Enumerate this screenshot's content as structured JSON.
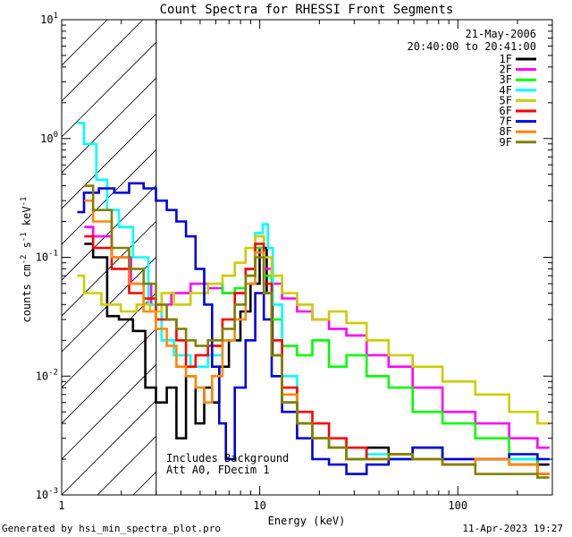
{
  "chart_data": {
    "type": "line",
    "title": "Count Spectra for RHESSI Front Segments",
    "xlabel": "Energy (keV)",
    "ylabel": "counts cm-2 s-1 keV-1",
    "ylabel_parts": [
      "counts cm",
      "-2",
      " s",
      "-1",
      " keV",
      "-1"
    ],
    "xscale": "log",
    "yscale": "log",
    "xlim": [
      1,
      300
    ],
    "ylim": [
      0.001,
      10
    ],
    "x_ticks": [
      {
        "v": 1,
        "label": "1"
      },
      {
        "v": 10,
        "label": "10"
      },
      {
        "v": 100,
        "label": "100"
      }
    ],
    "y_ticks": [
      {
        "v": 0.001,
        "base": "10",
        "exp": "-3"
      },
      {
        "v": 0.01,
        "base": "10",
        "exp": "-2"
      },
      {
        "v": 0.1,
        "base": "10",
        "exp": "-1"
      },
      {
        "v": 1,
        "base": "10",
        "exp": "0"
      },
      {
        "v": 10,
        "base": "10",
        "exp": "1"
      }
    ],
    "date": "21-May-2006",
    "time_range": "20:40:00 to 20:41:00",
    "shaded_below_keV": 3,
    "annotations": [
      "Includes Background",
      "Att A0, FDecim 1"
    ],
    "footer_left": "Generated by hsi_min_spectra_plot.pro",
    "footer_right": "11-Apr-2023 19:27",
    "series": [
      {
        "name": "1F",
        "color": "#000000",
        "points": [
          [
            1.3,
            0.13
          ],
          [
            1.6,
            0.1
          ],
          [
            1.8,
            0.032
          ],
          [
            2.1,
            0.03
          ],
          [
            2.5,
            0.024
          ],
          [
            2.8,
            0.008
          ],
          [
            3.2,
            0.006
          ],
          [
            3.6,
            0.008
          ],
          [
            4.0,
            0.003
          ],
          [
            4.5,
            0.01
          ],
          [
            5.0,
            0.004
          ],
          [
            5.5,
            0.008
          ],
          [
            6.0,
            0.006
          ],
          [
            6.5,
            0.012
          ],
          [
            7.5,
            0.02
          ],
          [
            8.5,
            0.035
          ],
          [
            9.5,
            0.06
          ],
          [
            10.5,
            0.12
          ],
          [
            11.2,
            0.05
          ],
          [
            12,
            0.015
          ],
          [
            14,
            0.006
          ],
          [
            17,
            0.004
          ],
          [
            20,
            0.003
          ],
          [
            25,
            0.0025
          ],
          [
            30,
            0.002
          ],
          [
            40,
            0.0025
          ],
          [
            50,
            0.002
          ],
          [
            70,
            0.0025
          ],
          [
            100,
            0.0018
          ],
          [
            150,
            0.002
          ],
          [
            220,
            0.002
          ],
          [
            290,
            0.0018
          ]
        ]
      },
      {
        "name": "2F",
        "color": "#ff00ff",
        "points": [
          [
            1.3,
            0.18
          ],
          [
            1.6,
            0.15
          ],
          [
            2.0,
            0.1
          ],
          [
            2.5,
            0.06
          ],
          [
            3.2,
            0.04
          ],
          [
            4.0,
            0.05
          ],
          [
            5.0,
            0.06
          ],
          [
            6.0,
            0.055
          ],
          [
            7.0,
            0.05
          ],
          [
            8.0,
            0.05
          ],
          [
            9.0,
            0.08
          ],
          [
            10.0,
            0.12
          ],
          [
            11.0,
            0.08
          ],
          [
            12,
            0.06
          ],
          [
            14,
            0.045
          ],
          [
            17,
            0.035
          ],
          [
            20,
            0.03
          ],
          [
            25,
            0.025
          ],
          [
            30,
            0.022
          ],
          [
            40,
            0.015
          ],
          [
            50,
            0.012
          ],
          [
            70,
            0.008
          ],
          [
            100,
            0.005
          ],
          [
            150,
            0.004
          ],
          [
            220,
            0.003
          ],
          [
            290,
            0.0025
          ]
        ]
      },
      {
        "name": "3F",
        "color": "#00ff00",
        "points": [
          [
            6.0,
            0.06
          ],
          [
            7.0,
            0.05
          ],
          [
            8.0,
            0.055
          ],
          [
            9.0,
            0.07
          ],
          [
            10.0,
            0.12
          ],
          [
            11.0,
            0.07
          ],
          [
            12,
            0.03
          ],
          [
            14,
            0.018
          ],
          [
            17,
            0.015
          ],
          [
            20,
            0.02
          ],
          [
            25,
            0.012
          ],
          [
            30,
            0.015
          ],
          [
            40,
            0.01
          ],
          [
            50,
            0.008
          ],
          [
            70,
            0.005
          ],
          [
            100,
            0.004
          ],
          [
            150,
            0.003
          ],
          [
            220,
            0.002
          ],
          [
            290,
            0.0015
          ]
        ]
      },
      {
        "name": "4F",
        "color": "#00ffff",
        "points": [
          [
            1.2,
            1.35
          ],
          [
            1.4,
            0.9
          ],
          [
            1.6,
            0.45
          ],
          [
            1.8,
            0.25
          ],
          [
            2.1,
            0.18
          ],
          [
            2.5,
            0.1
          ],
          [
            3.0,
            0.04
          ],
          [
            3.4,
            0.02
          ],
          [
            4.0,
            0.015
          ],
          [
            5.0,
            0.012
          ],
          [
            6.0,
            0.015
          ],
          [
            7.0,
            0.02
          ],
          [
            8.0,
            0.04
          ],
          [
            9.0,
            0.08
          ],
          [
            10.0,
            0.16
          ],
          [
            10.7,
            0.19
          ],
          [
            11.3,
            0.12
          ],
          [
            12,
            0.04
          ],
          [
            14,
            0.01
          ],
          [
            17,
            0.004
          ],
          [
            20,
            0.003
          ],
          [
            25,
            0.0025
          ],
          [
            30,
            0.002
          ],
          [
            40,
            0.0022
          ],
          [
            50,
            0.002
          ],
          [
            70,
            0.0025
          ],
          [
            100,
            0.002
          ],
          [
            150,
            0.002
          ],
          [
            220,
            0.002
          ],
          [
            290,
            0.002
          ]
        ]
      },
      {
        "name": "5F",
        "color": "#cccc00",
        "points": [
          [
            1.2,
            0.07
          ],
          [
            1.4,
            0.05
          ],
          [
            1.8,
            0.04
          ],
          [
            2.2,
            0.035
          ],
          [
            2.6,
            0.04
          ],
          [
            3.0,
            0.035
          ],
          [
            3.4,
            0.05
          ],
          [
            4.0,
            0.04
          ],
          [
            5.0,
            0.05
          ],
          [
            6.0,
            0.06
          ],
          [
            7.0,
            0.07
          ],
          [
            8.0,
            0.09
          ],
          [
            9.0,
            0.12
          ],
          [
            10.0,
            0.15
          ],
          [
            11.0,
            0.1
          ],
          [
            12,
            0.07
          ],
          [
            14,
            0.05
          ],
          [
            17,
            0.04
          ],
          [
            20,
            0.03
          ],
          [
            25,
            0.035
          ],
          [
            30,
            0.028
          ],
          [
            40,
            0.02
          ],
          [
            50,
            0.015
          ],
          [
            70,
            0.012
          ],
          [
            100,
            0.009
          ],
          [
            150,
            0.007
          ],
          [
            220,
            0.005
          ],
          [
            290,
            0.004
          ]
        ]
      },
      {
        "name": "6F",
        "color": "#ff0000",
        "points": [
          [
            1.3,
            0.15
          ],
          [
            1.6,
            0.12
          ],
          [
            2.0,
            0.08
          ],
          [
            2.4,
            0.05
          ],
          [
            2.8,
            0.045
          ],
          [
            3.2,
            0.03
          ],
          [
            3.6,
            0.03
          ],
          [
            4.0,
            0.02
          ],
          [
            4.5,
            0.012
          ],
          [
            5.0,
            0.015
          ],
          [
            6.0,
            0.018
          ],
          [
            7.0,
            0.03
          ],
          [
            8.0,
            0.05
          ],
          [
            9.0,
            0.08
          ],
          [
            10.0,
            0.13
          ],
          [
            11.0,
            0.06
          ],
          [
            12,
            0.02
          ],
          [
            14,
            0.008
          ],
          [
            17,
            0.005
          ],
          [
            20,
            0.004
          ],
          [
            25,
            0.003
          ],
          [
            30,
            0.0025
          ],
          [
            40,
            0.002
          ],
          [
            50,
            0.0022
          ],
          [
            70,
            0.002
          ],
          [
            100,
            0.002
          ],
          [
            150,
            0.002
          ],
          [
            220,
            0.0018
          ],
          [
            290,
            0.0015
          ]
        ]
      },
      {
        "name": "7F",
        "color": "#0000dd",
        "points": [
          [
            1.2,
            0.24
          ],
          [
            1.4,
            0.35
          ],
          [
            1.7,
            0.38
          ],
          [
            2.0,
            0.35
          ],
          [
            2.4,
            0.42
          ],
          [
            2.8,
            0.38
          ],
          [
            3.2,
            0.3
          ],
          [
            3.6,
            0.25
          ],
          [
            4.0,
            0.2
          ],
          [
            4.5,
            0.15
          ],
          [
            5.0,
            0.08
          ],
          [
            5.5,
            0.04
          ],
          [
            6.0,
            0.012
          ],
          [
            6.5,
            0.004
          ],
          [
            7.0,
            0.002
          ],
          [
            8.0,
            0.008
          ],
          [
            9.0,
            0.02
          ],
          [
            10.0,
            0.05
          ],
          [
            11.0,
            0.03
          ],
          [
            12,
            0.01
          ],
          [
            14,
            0.005
          ],
          [
            17,
            0.003
          ],
          [
            20,
            0.002
          ],
          [
            25,
            0.0018
          ],
          [
            30,
            0.0015
          ],
          [
            40,
            0.0018
          ],
          [
            50,
            0.002
          ],
          [
            70,
            0.0025
          ],
          [
            100,
            0.002
          ],
          [
            150,
            0.002
          ],
          [
            220,
            0.0022
          ],
          [
            290,
            0.002
          ]
        ]
      },
      {
        "name": "8F",
        "color": "#ff8800",
        "points": [
          [
            1.3,
            0.3
          ],
          [
            1.6,
            0.2
          ],
          [
            2.0,
            0.1
          ],
          [
            2.4,
            0.06
          ],
          [
            2.8,
            0.035
          ],
          [
            3.2,
            0.025
          ],
          [
            3.6,
            0.018
          ],
          [
            4.0,
            0.012
          ],
          [
            4.5,
            0.01
          ],
          [
            5.0,
            0.008
          ],
          [
            5.5,
            0.006
          ],
          [
            6.0,
            0.01
          ],
          [
            7.0,
            0.02
          ],
          [
            8.0,
            0.03
          ],
          [
            9.0,
            0.06
          ],
          [
            10.0,
            0.11
          ],
          [
            11.0,
            0.05
          ],
          [
            12,
            0.015
          ],
          [
            14,
            0.007
          ],
          [
            17,
            0.004
          ],
          [
            20,
            0.003
          ],
          [
            25,
            0.0025
          ],
          [
            30,
            0.002
          ],
          [
            40,
            0.002
          ],
          [
            50,
            0.0022
          ],
          [
            70,
            0.002
          ],
          [
            100,
            0.0018
          ],
          [
            150,
            0.002
          ],
          [
            220,
            0.0018
          ],
          [
            290,
            0.0015
          ]
        ]
      },
      {
        "name": "9F",
        "color": "#808000",
        "points": [
          [
            1.3,
            0.4
          ],
          [
            1.6,
            0.25
          ],
          [
            2.0,
            0.12
          ],
          [
            2.4,
            0.08
          ],
          [
            2.8,
            0.06
          ],
          [
            3.2,
            0.04
          ],
          [
            3.6,
            0.03
          ],
          [
            4.0,
            0.025
          ],
          [
            4.5,
            0.02
          ],
          [
            5.0,
            0.018
          ],
          [
            6.0,
            0.02
          ],
          [
            7.0,
            0.025
          ],
          [
            8.0,
            0.04
          ],
          [
            9.0,
            0.07
          ],
          [
            10.0,
            0.1
          ],
          [
            11.0,
            0.05
          ],
          [
            12,
            0.015
          ],
          [
            14,
            0.006
          ],
          [
            17,
            0.004
          ],
          [
            20,
            0.003
          ],
          [
            25,
            0.0025
          ],
          [
            30,
            0.002
          ],
          [
            40,
            0.002
          ],
          [
            50,
            0.0022
          ],
          [
            70,
            0.002
          ],
          [
            100,
            0.0018
          ],
          [
            150,
            0.0015
          ],
          [
            220,
            0.0015
          ],
          [
            290,
            0.0014
          ]
        ]
      }
    ]
  }
}
